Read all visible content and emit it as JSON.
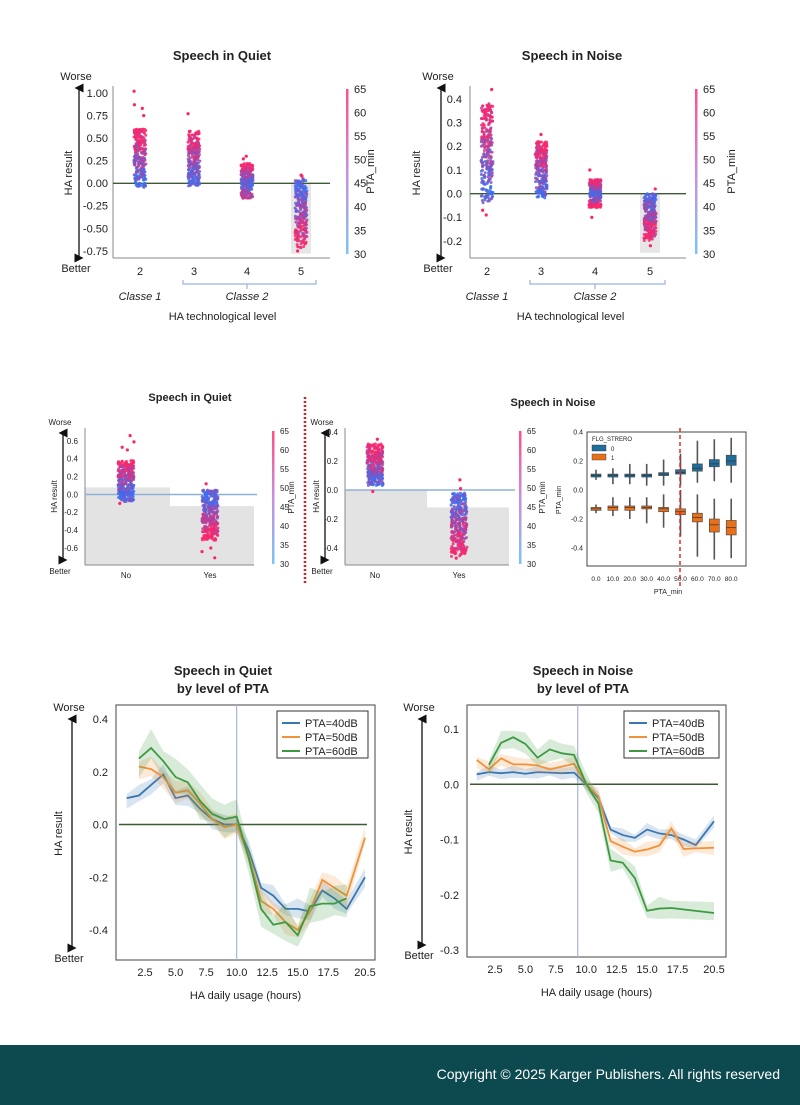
{
  "footer": {
    "copyright": "Copyright © 2025 Karger Publishers. All rights reserved",
    "bg_color": "#0d4a4f"
  },
  "colors": {
    "pta_high": "#ff2468",
    "pta_low": "#3b6ef0",
    "zero_line": "#3d5a36",
    "blue": "#3a76b0",
    "orange": "#f0923a",
    "green": "#3e9a42",
    "box0": "#1f6e9c",
    "box1": "#e8701a",
    "divider": "#d0202a"
  },
  "chart_data": [
    {
      "id": "tech-quiet",
      "type": "scatter",
      "title": "Speech in Quiet",
      "ylabel": "HA result",
      "xlabel": "HA technological level",
      "worse_label": "Worse",
      "better_label": "Better",
      "yticks": [
        "1.00",
        "0.75",
        "0.50",
        "0.25",
        "0.00",
        "-0.25",
        "-0.50",
        "-0.75"
      ],
      "yticks_values": [
        1.0,
        0.75,
        0.5,
        0.25,
        0,
        -0.25,
        -0.5,
        -0.75
      ],
      "ylim": [
        -0.78,
        1.05
      ],
      "categories": [
        "2",
        "3",
        "4",
        "5"
      ],
      "ranges": [
        [
          -0.05,
          0.6
        ],
        [
          -0.03,
          0.58
        ],
        [
          -0.17,
          0.22
        ],
        [
          -0.72,
          0.05
        ]
      ],
      "outliers": [
        [
          1.02,
          0.87,
          0.83,
          0.75
        ],
        [
          0.77
        ],
        [
          0.3,
          0.27
        ],
        [
          0.09,
          0.08,
          -0.75
        ]
      ],
      "groups": [
        {
          "label": "Classe 1",
          "categories": [
            "2"
          ]
        },
        {
          "label": "Classe 2",
          "categories": [
            "3",
            "4",
            "5"
          ]
        }
      ],
      "colorbar": {
        "label": "PTA_min",
        "ticks": [
          "65",
          "60",
          "55",
          "50",
          "45",
          "40",
          "35",
          "30"
        ],
        "range": [
          30,
          65
        ]
      }
    },
    {
      "id": "tech-noise",
      "type": "scatter",
      "title": "Speech in Noise",
      "ylabel": "HA result",
      "xlabel": "HA technological level",
      "worse_label": "Worse",
      "better_label": "Better",
      "yticks": [
        "0.4",
        "0.3",
        "0.2",
        "0.1",
        "0.0",
        "-0.1",
        "-0.2"
      ],
      "yticks_values": [
        0.4,
        0.3,
        0.2,
        0.1,
        0,
        -0.1,
        -0.2
      ],
      "ylim": [
        -0.25,
        0.45
      ],
      "categories": [
        "2",
        "3",
        "4",
        "5"
      ],
      "ranges": [
        [
          -0.04,
          0.38
        ],
        [
          -0.02,
          0.22
        ],
        [
          -0.06,
          0.06
        ],
        [
          -0.2,
          0.0
        ]
      ],
      "outliers": [
        [
          0.44,
          -0.09,
          -0.07
        ],
        [
          0.25
        ],
        [
          0.1,
          -0.1
        ],
        [
          0.02,
          -0.22
        ]
      ],
      "groups": [
        {
          "label": "Classe 1",
          "categories": [
            "2"
          ]
        },
        {
          "label": "Classe 2",
          "categories": [
            "3",
            "4",
            "5"
          ]
        }
      ],
      "colorbar": {
        "label": "PTA_min",
        "ticks": [
          "65",
          "60",
          "55",
          "50",
          "45",
          "40",
          "35",
          "30"
        ],
        "range": [
          30,
          65
        ]
      }
    },
    {
      "id": "stereo-quiet",
      "type": "scatter",
      "title": "Speech in Quiet",
      "ylabel": "HA result",
      "worse_label": "Worse",
      "better_label": "Better",
      "yticks": [
        "0.6",
        "0.4",
        "0.2",
        "0.0",
        "-0.2",
        "-0.4",
        "-0.6"
      ],
      "yticks_values": [
        0.6,
        0.4,
        0.2,
        0,
        -0.2,
        -0.4,
        -0.6
      ],
      "ylim": [
        -0.78,
        0.72
      ],
      "categories": [
        "No",
        "Yes"
      ],
      "ranges": [
        [
          -0.08,
          0.38
        ],
        [
          -0.52,
          0.05
        ]
      ],
      "outliers": [
        [
          0.66,
          0.59,
          0.53,
          0.5,
          -0.1
        ],
        [
          0.12,
          -0.6,
          -0.64,
          -0.71
        ]
      ],
      "bar_means": [
        0.08,
        -0.13
      ],
      "colorbar": {
        "label": "PTA_min",
        "ticks": [
          "65",
          "60",
          "55",
          "50",
          "45",
          "40",
          "35",
          "30"
        ],
        "range": [
          30,
          65
        ]
      }
    },
    {
      "id": "stereo-noise",
      "type": "scatter",
      "title": "Speech in Noise",
      "ylabel": "HA result",
      "worse_label": "Worse",
      "better_label": "Better",
      "yticks": [
        "0.4",
        "0.2",
        "0.0",
        "-0.2",
        "-0.4"
      ],
      "yticks_values": [
        0.4,
        0.2,
        0,
        -0.2,
        -0.4
      ],
      "ylim": [
        -0.5,
        0.42
      ],
      "categories": [
        "No",
        "Yes"
      ],
      "ranges": [
        [
          0.03,
          0.32
        ],
        [
          -0.46,
          -0.02
        ]
      ],
      "outliers": [
        [
          0.35,
          -0.01
        ],
        [
          0.07,
          0.01,
          -0.47
        ]
      ],
      "bar_means": [
        0.0,
        -0.12
      ],
      "colorbar": {
        "label": "PTA_min",
        "ticks": [
          "65",
          "60",
          "55",
          "50",
          "45",
          "40",
          "35",
          "30"
        ],
        "range": [
          30,
          65
        ]
      }
    },
    {
      "id": "stereo-box",
      "type": "box",
      "xlabel": "PTA_min",
      "ylabel": "PTA_min",
      "legend": {
        "title": "FLG_STRERO",
        "entries": [
          "0",
          "1"
        ],
        "placement": "top-left"
      },
      "categories": [
        "0.0",
        "10.0",
        "20.0",
        "30.0",
        "40.0",
        "50.0",
        "60.0",
        "70.0",
        "80.0"
      ],
      "yticks": [
        "0.4",
        "0.2",
        "0.0",
        "-0.2",
        "-0.4"
      ],
      "yticks_values": [
        0.4,
        0.2,
        0,
        -0.2,
        -0.4
      ],
      "ylim": [
        -0.53,
        0.4
      ],
      "threshold": "50.0",
      "series": [
        {
          "name": "0",
          "median": [
            0.1,
            0.1,
            0.1,
            0.1,
            0.11,
            0.12,
            0.15,
            0.18,
            0.2
          ],
          "q1": [
            0.09,
            0.09,
            0.09,
            0.09,
            0.1,
            0.11,
            0.13,
            0.16,
            0.17
          ],
          "q3": [
            0.11,
            0.11,
            0.11,
            0.11,
            0.12,
            0.14,
            0.18,
            0.21,
            0.24
          ],
          "lo": [
            0.07,
            0.04,
            0.04,
            0.03,
            0.03,
            0.03,
            0.05,
            0.06,
            0.05
          ],
          "hi": [
            0.14,
            0.15,
            0.18,
            0.18,
            0.21,
            0.25,
            0.34,
            0.35,
            0.36
          ]
        },
        {
          "name": "1",
          "median": [
            -0.13,
            -0.12,
            -0.12,
            -0.12,
            -0.13,
            -0.15,
            -0.19,
            -0.24,
            -0.26
          ],
          "q1": [
            -0.14,
            -0.14,
            -0.14,
            -0.13,
            -0.15,
            -0.17,
            -0.22,
            -0.29,
            -0.31
          ],
          "q3": [
            -0.12,
            -0.11,
            -0.11,
            -0.11,
            -0.12,
            -0.13,
            -0.16,
            -0.2,
            -0.21
          ],
          "lo": [
            -0.16,
            -0.18,
            -0.2,
            -0.23,
            -0.26,
            -0.32,
            -0.46,
            -0.48,
            -0.47
          ],
          "hi": [
            -0.1,
            -0.05,
            -0.05,
            -0.05,
            -0.03,
            0.0,
            -0.03,
            -0.06,
            -0.06
          ]
        }
      ]
    },
    {
      "id": "usage-quiet",
      "type": "line",
      "title_lines": [
        "Speech in Quiet",
        "by level of PTA"
      ],
      "xlabel": "HA daily usage (hours)",
      "ylabel": "HA result",
      "worse_label": "Worse",
      "better_label": "Better",
      "xticks": [
        "2.5",
        "5.0",
        "7.5",
        "10.0",
        "12.5",
        "15.0",
        "17.5",
        "20.5"
      ],
      "xticks_values": [
        2.5,
        5,
        7.5,
        10,
        12.5,
        15,
        17.5,
        20.5
      ],
      "yticks": [
        "0.4",
        "0.2",
        "0.0",
        "-0.2",
        "-0.4"
      ],
      "yticks_values": [
        0.4,
        0.2,
        0,
        -0.2,
        -0.4
      ],
      "ylim": [
        -0.47,
        0.43
      ],
      "reference_x": 10,
      "legend_placement": "top-right",
      "series": [
        {
          "name": "PTA=40dB",
          "x": [
            1,
            2,
            3,
            4,
            5,
            6,
            7,
            8,
            9,
            10,
            11,
            12,
            13,
            14,
            15,
            16,
            17,
            18,
            19,
            20.5
          ],
          "y": [
            0.1,
            0.11,
            0.15,
            0.19,
            0.1,
            0.11,
            0.06,
            0.02,
            0.0,
            0.0,
            -0.1,
            -0.24,
            -0.27,
            -0.32,
            -0.32,
            -0.33,
            -0.25,
            -0.28,
            -0.32,
            -0.2
          ]
        },
        {
          "name": "PTA=50dB",
          "x": [
            2,
            3,
            4,
            5,
            6,
            7,
            8,
            9,
            10,
            11,
            12,
            13,
            14,
            15,
            16,
            17,
            18,
            19,
            20.5
          ],
          "y": [
            0.22,
            0.21,
            0.18,
            0.12,
            0.13,
            0.08,
            0.02,
            -0.01,
            0.0,
            -0.12,
            -0.29,
            -0.32,
            -0.37,
            -0.4,
            -0.33,
            -0.21,
            -0.24,
            -0.27,
            -0.05
          ]
        },
        {
          "name": "PTA=60dB",
          "x": [
            2,
            3,
            4,
            5,
            6,
            7,
            8,
            9,
            10,
            11,
            12,
            13,
            14,
            15,
            16,
            17,
            18,
            19
          ],
          "y": [
            0.25,
            0.29,
            0.24,
            0.18,
            0.16,
            0.09,
            0.04,
            0.02,
            0.03,
            -0.13,
            -0.32,
            -0.38,
            -0.37,
            -0.42,
            -0.31,
            -0.3,
            -0.3,
            -0.28
          ]
        }
      ]
    },
    {
      "id": "usage-noise",
      "type": "line",
      "title_lines": [
        "Speech in Noise",
        "by level of PTA"
      ],
      "xlabel": "HA daily usage (hours)",
      "ylabel": "HA result",
      "worse_label": "Worse",
      "better_label": "Better",
      "xticks": [
        "2.5",
        "5.0",
        "7.5",
        "10.0",
        "12.5",
        "15.0",
        "17.5",
        "20.5"
      ],
      "xticks_values": [
        2.5,
        5,
        7.5,
        10,
        12.5,
        15,
        17.5,
        20.5
      ],
      "yticks": [
        "0.1",
        "0.0",
        "-0.1",
        "-0.2",
        "-0.3"
      ],
      "yticks_values": [
        0.1,
        0,
        -0.1,
        -0.2,
        -0.3
      ],
      "ylim": [
        -0.305,
        0.14
      ],
      "reference_x": 9.3,
      "legend_placement": "top-right",
      "series": [
        {
          "name": "PTA=40dB",
          "x": [
            1,
            2,
            3,
            4,
            5,
            6,
            7,
            8,
            9,
            10,
            11,
            12,
            13,
            14,
            15,
            16,
            17,
            18,
            19,
            20.5
          ],
          "y": [
            0.018,
            0.022,
            0.02,
            0.022,
            0.019,
            0.022,
            0.021,
            0.02,
            0.021,
            0.0,
            -0.025,
            -0.082,
            -0.092,
            -0.097,
            -0.082,
            -0.089,
            -0.092,
            -0.1,
            -0.11,
            -0.067
          ]
        },
        {
          "name": "PTA=50dB",
          "x": [
            1,
            2,
            3,
            4,
            5,
            6,
            7,
            8,
            9,
            10,
            11,
            12,
            13,
            14,
            15,
            16,
            17,
            18,
            19,
            20.5
          ],
          "y": [
            0.044,
            0.027,
            0.047,
            0.036,
            0.036,
            0.034,
            0.027,
            0.032,
            0.037,
            0.0,
            -0.022,
            -0.103,
            -0.113,
            -0.122,
            -0.118,
            -0.111,
            -0.08,
            -0.117,
            -0.116,
            -0.115
          ]
        },
        {
          "name": "PTA=60dB",
          "x": [
            2,
            3,
            4,
            5,
            6,
            7,
            8,
            9,
            10,
            11,
            12,
            13,
            14,
            15,
            16,
            17,
            20.5
          ],
          "y": [
            0.035,
            0.075,
            0.085,
            0.073,
            0.048,
            0.063,
            0.056,
            0.053,
            0.0,
            -0.035,
            -0.138,
            -0.142,
            -0.17,
            -0.229,
            -0.225,
            -0.224,
            -0.233
          ]
        }
      ]
    }
  ]
}
